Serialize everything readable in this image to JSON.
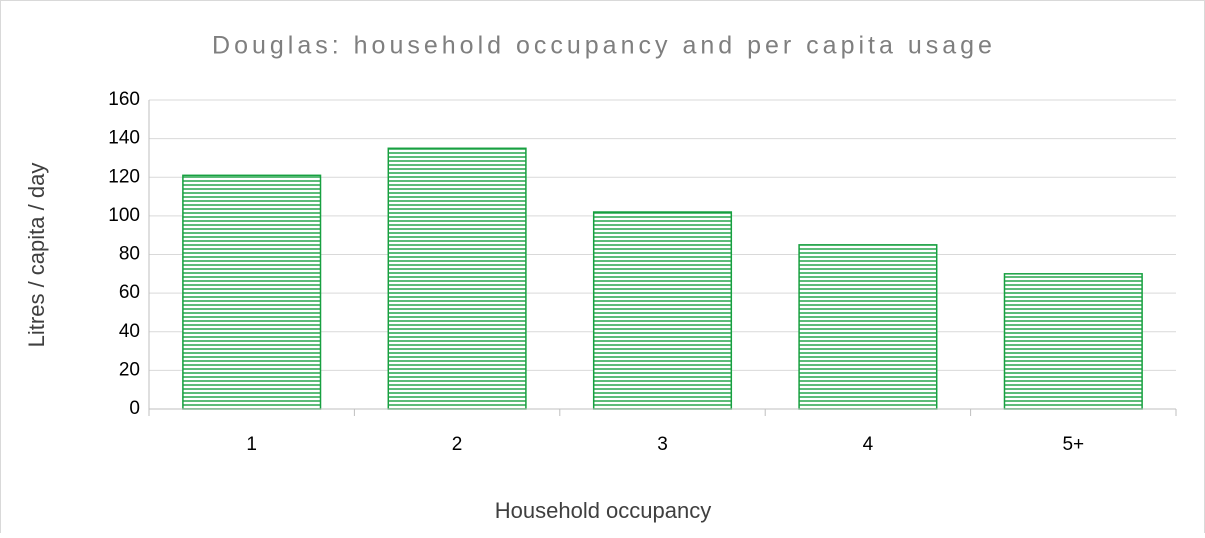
{
  "chart_data": {
    "type": "bar",
    "title": "Douglas: household occupancy and per capita usage",
    "x_label": "Household occupancy",
    "y_label": "Litres / capita / day",
    "categories": [
      "1",
      "2",
      "3",
      "4",
      "5+"
    ],
    "values": [
      121,
      135,
      102,
      85,
      70
    ],
    "color": "#17a040",
    "pattern": "horizontal-lines",
    "ylim": [
      0,
      160
    ],
    "yticks": [
      0,
      20,
      40,
      60,
      80,
      100,
      120,
      140,
      160
    ],
    "grid": true
  }
}
